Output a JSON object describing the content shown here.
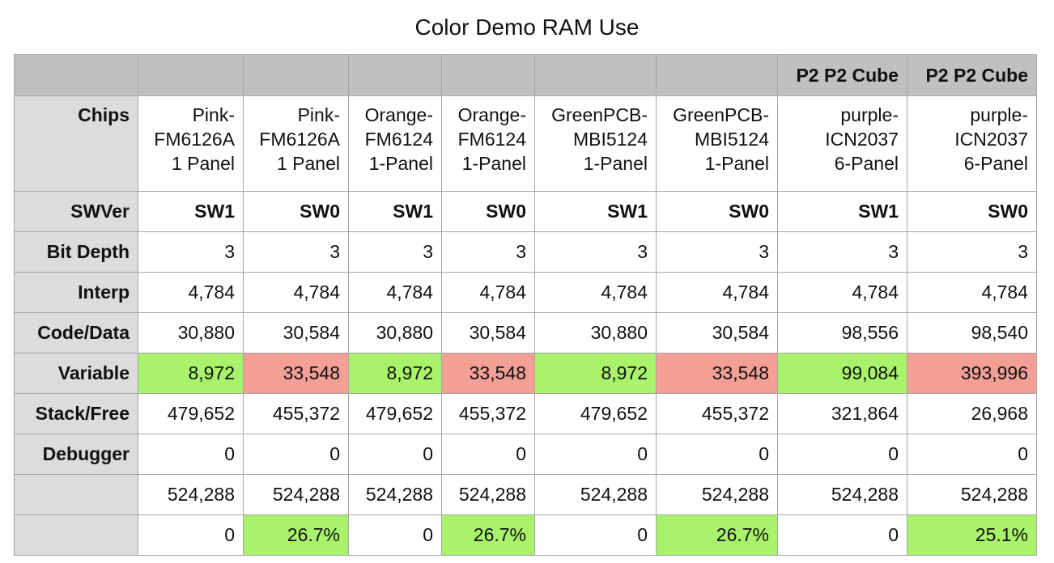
{
  "title": "Color Demo RAM Use",
  "colors": {
    "good": "#a9f26b",
    "bad": "#f2a095",
    "header": "#c0c0c0",
    "row_label": "#dcdcdc"
  },
  "header": [
    "",
    "",
    "",
    "",
    "",
    "",
    "",
    "P2 P2 Cube",
    "P2 P2 Cube"
  ],
  "chips": {
    "label": "Chips",
    "values": [
      [
        "Pink-",
        "FM6126A",
        "1 Panel"
      ],
      [
        "Pink-",
        "FM6126A",
        "1 Panel"
      ],
      [
        "Orange-",
        "FM6124",
        "1-Panel"
      ],
      [
        "Orange-",
        "FM6124",
        "1-Panel"
      ],
      [
        "GreenPCB-",
        "MBI5124",
        "1-Panel"
      ],
      [
        "GreenPCB-",
        "MBI5124",
        "1-Panel"
      ],
      [
        "purple-",
        "ICN2037",
        "6-Panel"
      ],
      [
        "purple-",
        "ICN2037",
        "6-Panel"
      ]
    ]
  },
  "rows": [
    {
      "label": "SWVer",
      "values": [
        "SW1",
        "SW0",
        "SW1",
        "SW0",
        "SW1",
        "SW0",
        "SW1",
        "SW0"
      ]
    },
    {
      "label": "Bit Depth",
      "values": [
        "3",
        "3",
        "3",
        "3",
        "3",
        "3",
        "3",
        "3"
      ]
    },
    {
      "label": "Interp",
      "values": [
        "4,784",
        "4,784",
        "4,784",
        "4,784",
        "4,784",
        "4,784",
        "4,784",
        "4,784"
      ]
    },
    {
      "label": "Code/Data",
      "values": [
        "30,880",
        "30,584",
        "30,880",
        "30,584",
        "30,880",
        "30,584",
        "98,556",
        "98,540"
      ]
    },
    {
      "label": "Variable",
      "values": [
        "8,972",
        "33,548",
        "8,972",
        "33,548",
        "8,972",
        "33,548",
        "99,084",
        "393,996"
      ]
    },
    {
      "label": "Stack/Free",
      "values": [
        "479,652",
        "455,372",
        "479,652",
        "455,372",
        "479,652",
        "455,372",
        "321,864",
        "26,968"
      ]
    },
    {
      "label": "Debugger",
      "values": [
        "0",
        "0",
        "0",
        "0",
        "0",
        "0",
        "0",
        "0"
      ]
    },
    {
      "label": "",
      "values": [
        "524,288",
        "524,288",
        "524,288",
        "524,288",
        "524,288",
        "524,288",
        "524,288",
        "524,288"
      ]
    },
    {
      "label": "",
      "values": [
        "0",
        "26.7%",
        "0",
        "26.7%",
        "0",
        "26.7%",
        "0",
        "25.1%"
      ]
    }
  ]
}
